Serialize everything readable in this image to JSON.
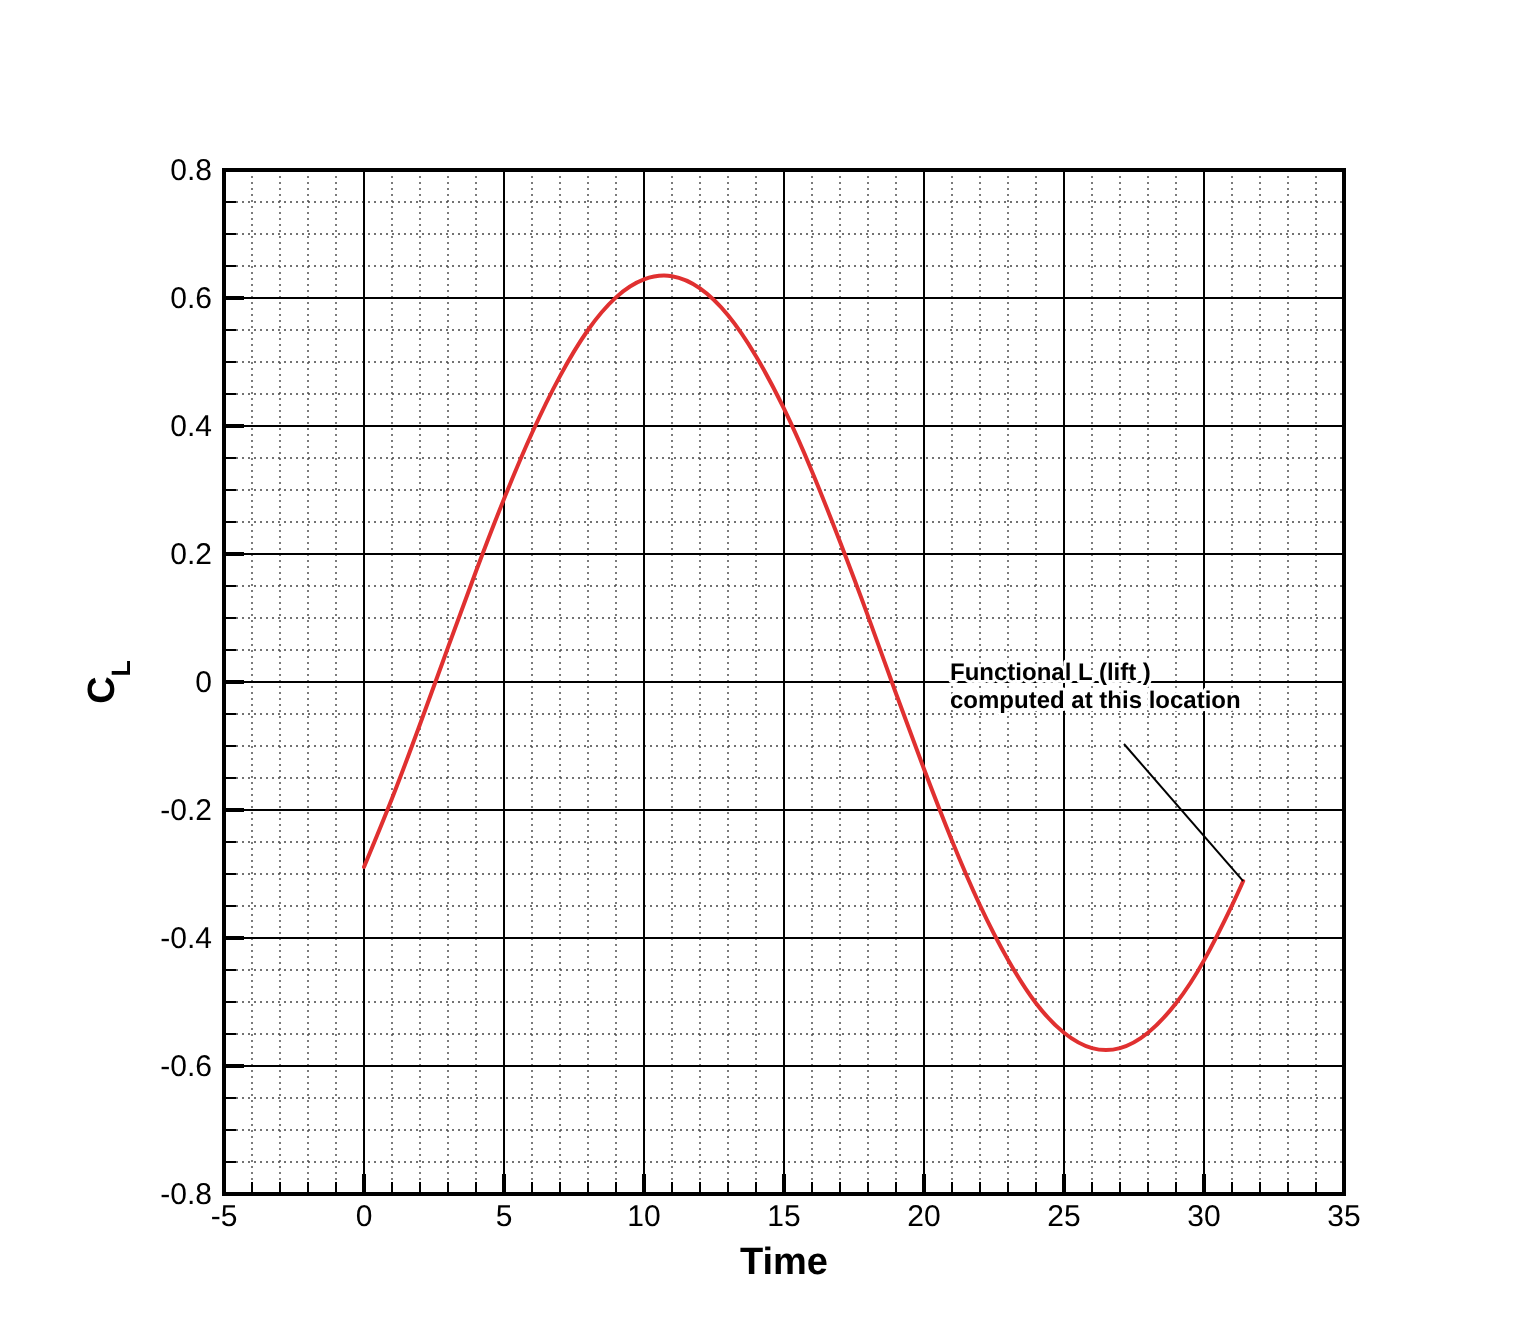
{
  "chart_data": {
    "type": "line",
    "xlabel": "Time",
    "ylabel": "C$_{L}$",
    "x": [
      0,
      1,
      2,
      3,
      4,
      5,
      6,
      7,
      8,
      9,
      10,
      11,
      12,
      13,
      14,
      15,
      16,
      17,
      18,
      19,
      20,
      21,
      22,
      23,
      24,
      25,
      26,
      27,
      28,
      29,
      30,
      31,
      31.4
    ],
    "series": [
      {
        "color": "#e03030",
        "values": [
          -0.289,
          -0.182,
          -0.066,
          0.054,
          0.173,
          0.286,
          0.389,
          0.478,
          0.55,
          0.601,
          0.629,
          0.634,
          0.615,
          0.573,
          0.509,
          0.427,
          0.329,
          0.219,
          0.103,
          -0.018,
          -0.136,
          -0.248,
          -0.349,
          -0.434,
          -0.502,
          -0.548,
          -0.572,
          -0.572,
          -0.548,
          -0.502,
          -0.435,
          -0.349,
          -0.311
        ]
      }
    ],
    "xlim": [
      -5,
      35
    ],
    "xticks": [
      -5,
      0,
      5,
      10,
      15,
      20,
      25,
      30,
      35
    ],
    "ylim": [
      -0.8,
      0.8
    ],
    "yticks": [
      -0.8,
      -0.6,
      -0.4,
      -0.2,
      0,
      0.2,
      0.4,
      0.6,
      0.8
    ],
    "grid": true,
    "marker": "none",
    "line_style": "solid",
    "annotations": [
      {
        "text": "Functional L (lift )\ncomputed at this location",
        "x": 31.4,
        "y": -0.311
      }
    ]
  }
}
